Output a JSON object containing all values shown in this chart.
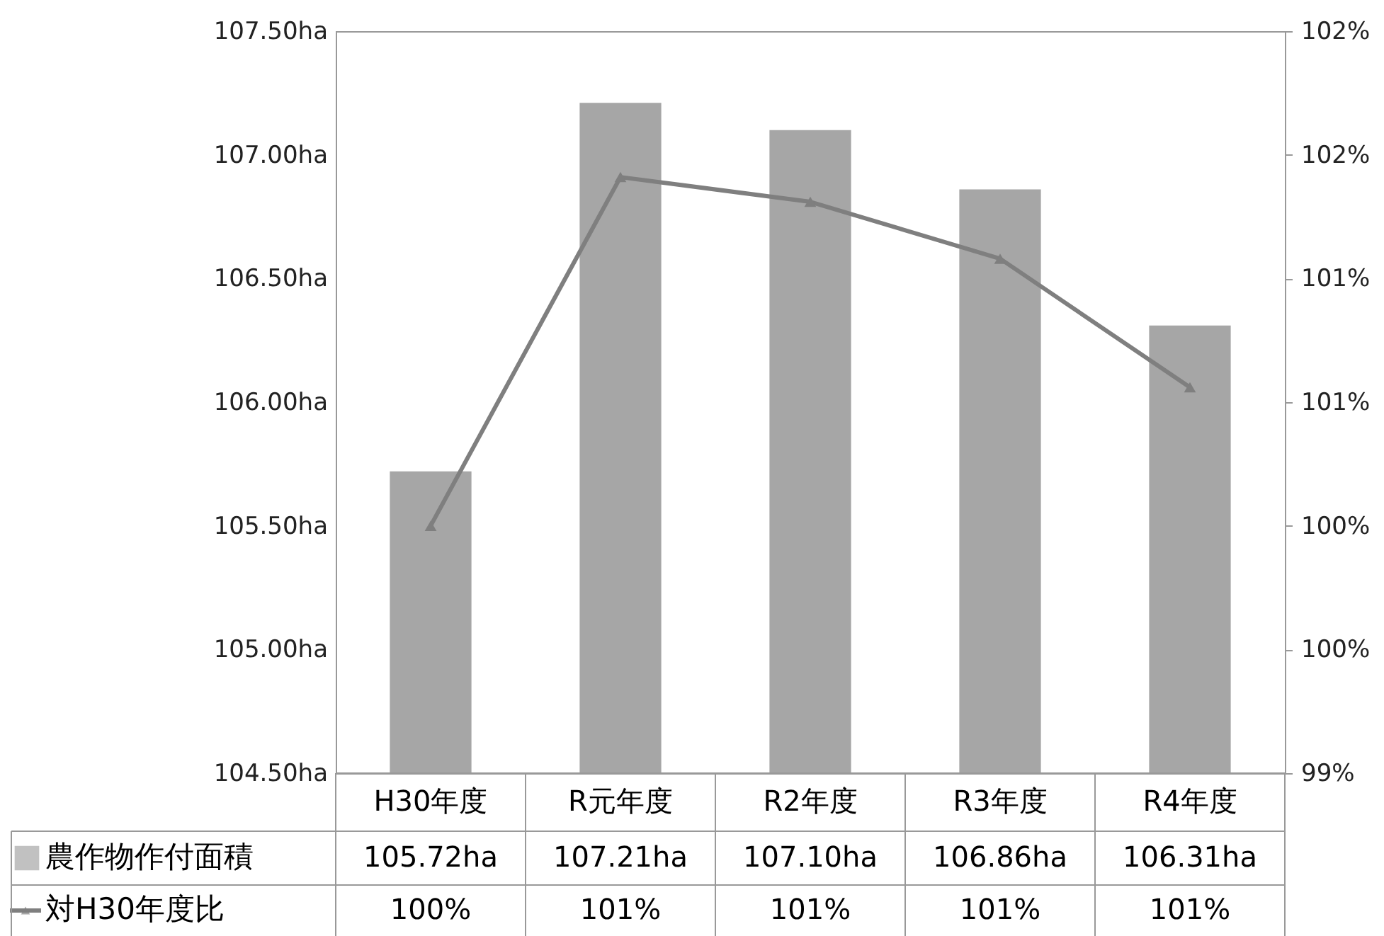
{
  "chart_data": {
    "type": "bar",
    "categories": [
      "H30年度",
      "R元年度",
      "R2年度",
      "R3年度",
      "R4年度"
    ],
    "series": [
      {
        "name": "農作物作付面積",
        "color": "#a6a6a6",
        "values": [
          105.72,
          107.21,
          107.1,
          106.86,
          106.31
        ],
        "value_labels": [
          "105.72ha",
          "107.21ha",
          "107.10ha",
          "106.86ha",
          "106.31ha"
        ]
      },
      {
        "name": "対H30年度比",
        "type": "line",
        "axis": "y2",
        "color": "#7f7f7f",
        "marker": "triangle",
        "values": [
          100,
          101.41,
          101.31,
          101.08,
          100.56
        ],
        "value_labels": [
          "100%",
          "101%",
          "101%",
          "101%",
          "101%"
        ]
      }
    ],
    "ylim": [
      104.5,
      107.5
    ],
    "yticks": [
      {
        "value": 104.5,
        "label": "104.50ha"
      },
      {
        "value": 105,
        "label": "105.00ha"
      },
      {
        "value": 105.5,
        "label": "105.50ha"
      },
      {
        "value": 106,
        "label": "106.00ha"
      },
      {
        "value": 106.5,
        "label": "106.50ha"
      },
      {
        "value": 107,
        "label": "107.00ha"
      },
      {
        "value": 107.5,
        "label": "107.50ha"
      }
    ],
    "y2lim": [
      99,
      102
    ],
    "y2ticks": [
      {
        "value": 99,
        "label": "99%"
      },
      {
        "value": 99.5,
        "label": "100%"
      },
      {
        "value": 100,
        "label": "100%"
      },
      {
        "value": 100.5,
        "label": "101%"
      },
      {
        "value": 101,
        "label": "101%"
      },
      {
        "value": 101.5,
        "label": "102%"
      },
      {
        "value": 102,
        "label": "102%"
      }
    ],
    "grid": false,
    "legend": "bottom left"
  }
}
